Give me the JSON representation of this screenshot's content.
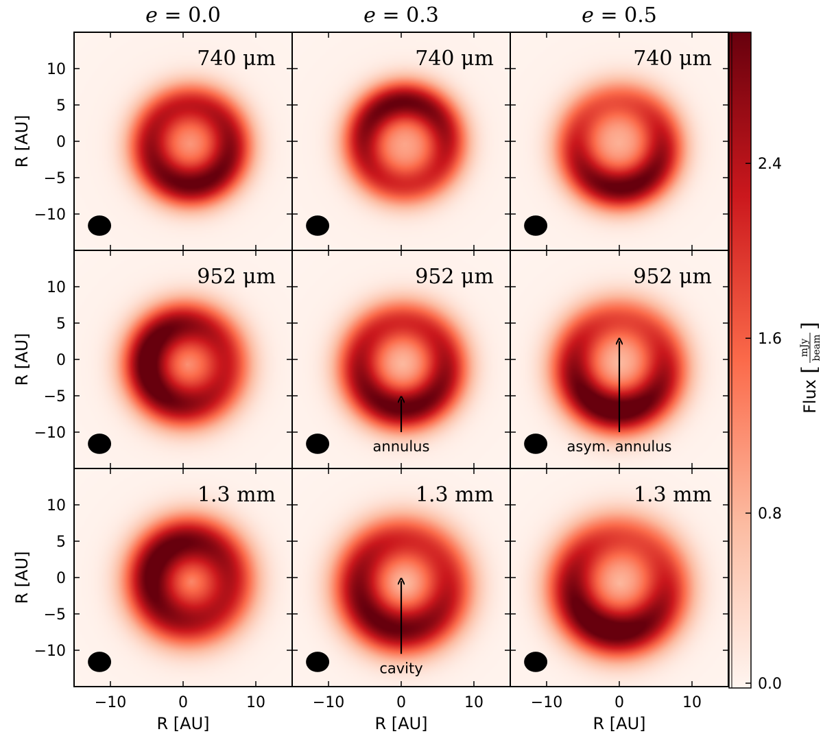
{
  "figure": {
    "column_titles": [
      "e = 0.0",
      "e = 0.3",
      "e = 0.5"
    ],
    "column_params": [
      {
        "symbol": "e",
        "value": "0.0"
      },
      {
        "symbol": "e",
        "value": "0.3"
      },
      {
        "symbol": "e",
        "value": "0.5"
      }
    ],
    "row_labels": [
      "740 μm",
      "952 μm",
      "1.3 mm"
    ],
    "xlabel": "R [AU]",
    "ylabel": "R [AU]",
    "colorbar": {
      "label": "Flux [mJy/beam]",
      "label_prefix": "Flux",
      "unit_numerator": "mJy",
      "unit_denominator": "beam",
      "ticks": [
        "0.0",
        "0.8",
        "1.6",
        "2.4"
      ],
      "range": [
        0.0,
        3.0
      ],
      "colormap": "Reds",
      "colors": [
        "#fff5f0",
        "#fcbba1",
        "#fb6a4a",
        "#cb181d",
        "#67000d"
      ]
    },
    "annotations": [
      {
        "panel_row": 1,
        "panel_col": 1,
        "text": "annulus",
        "arrow_from": [
          0,
          -10
        ],
        "arrow_to": [
          0,
          -5.5
        ]
      },
      {
        "panel_row": 1,
        "panel_col": 2,
        "text": "asym. annulus",
        "arrow_from": [
          0,
          -10
        ],
        "arrow_to": [
          0,
          2.5
        ]
      },
      {
        "panel_row": 2,
        "panel_col": 1,
        "text": "cavity",
        "arrow_from": [
          0,
          -10.5
        ],
        "arrow_to": [
          0,
          -0.5
        ]
      }
    ]
  },
  "chart_data": {
    "type": "heatmap",
    "grid": {
      "rows": 3,
      "cols": 3
    },
    "x_ticks": [
      -10,
      0,
      10
    ],
    "y_ticks": [
      10,
      5,
      0,
      -5,
      -10
    ],
    "xlim": [
      -15,
      15
    ],
    "ylim": [
      -15,
      15
    ],
    "vmin": 0.0,
    "vmax": 3.0,
    "beam": {
      "x": -11.5,
      "y": -11.6,
      "major": 3.2,
      "minor": 2.8
    },
    "panels": [
      {
        "row": 0,
        "col": 0,
        "label": "740 μm",
        "e": 0.0,
        "cx": 1.0,
        "cy": -0.5,
        "ring_radius": 5.6,
        "ring_width": 2.2,
        "peak": 2.4,
        "cavity": 0.9,
        "asym": 0.15,
        "asym_angle": -80,
        "halo": 0.1
      },
      {
        "row": 0,
        "col": 1,
        "label": "740 μm",
        "e": 0.3,
        "cx": 0.5,
        "cy": -0.3,
        "ring_radius": 5.8,
        "ring_width": 2.1,
        "peak": 2.3,
        "cavity": 0.8,
        "asym": 0.2,
        "asym_angle": 100,
        "halo": 0.1
      },
      {
        "row": 0,
        "col": 2,
        "label": "740 μm",
        "e": 0.5,
        "cx": 0.0,
        "cy": -0.5,
        "ring_radius": 6.0,
        "ring_width": 2.2,
        "peak": 2.2,
        "cavity": 0.7,
        "asym": 0.3,
        "asym_angle": -80,
        "halo": 0.1
      },
      {
        "row": 1,
        "col": 0,
        "label": "952 μm",
        "e": 0.0,
        "cx": 0.5,
        "cy": -0.7,
        "ring_radius": 5.6,
        "ring_width": 2.4,
        "peak": 2.5,
        "cavity": 0.9,
        "asym": 0.2,
        "asym_angle": 180,
        "halo": 0.1
      },
      {
        "row": 1,
        "col": 1,
        "label": "952 μm",
        "e": 0.3,
        "cx": 0.2,
        "cy": -0.8,
        "ring_radius": 6.0,
        "ring_width": 2.3,
        "peak": 2.4,
        "cavity": 0.6,
        "asym": 0.2,
        "asym_angle": -90,
        "halo": 0.1
      },
      {
        "row": 1,
        "col": 2,
        "label": "952 μm",
        "e": 0.5,
        "cx": 0.0,
        "cy": -0.8,
        "ring_radius": 6.3,
        "ring_width": 2.4,
        "peak": 2.4,
        "cavity": 0.6,
        "asym": 0.3,
        "asym_angle": -100,
        "halo": 0.1
      },
      {
        "row": 2,
        "col": 0,
        "label": "1.3 mm",
        "e": 0.0,
        "cx": 1.0,
        "cy": -0.5,
        "ring_radius": 5.6,
        "ring_width": 2.6,
        "peak": 2.5,
        "cavity": 0.9,
        "asym": 0.15,
        "asym_angle": 150,
        "halo": 0.1
      },
      {
        "row": 2,
        "col": 1,
        "label": "1.3 mm",
        "e": 0.3,
        "cx": 0.3,
        "cy": -1.0,
        "ring_radius": 6.2,
        "ring_width": 2.6,
        "peak": 2.4,
        "cavity": 0.5,
        "asym": 0.2,
        "asym_angle": -120,
        "halo": 0.1
      },
      {
        "row": 2,
        "col": 2,
        "label": "1.3 mm",
        "e": 0.5,
        "cx": 0.0,
        "cy": -1.0,
        "ring_radius": 6.5,
        "ring_width": 2.6,
        "peak": 2.4,
        "cavity": 0.6,
        "asym": 0.3,
        "asym_angle": -110,
        "halo": 0.1
      }
    ]
  }
}
